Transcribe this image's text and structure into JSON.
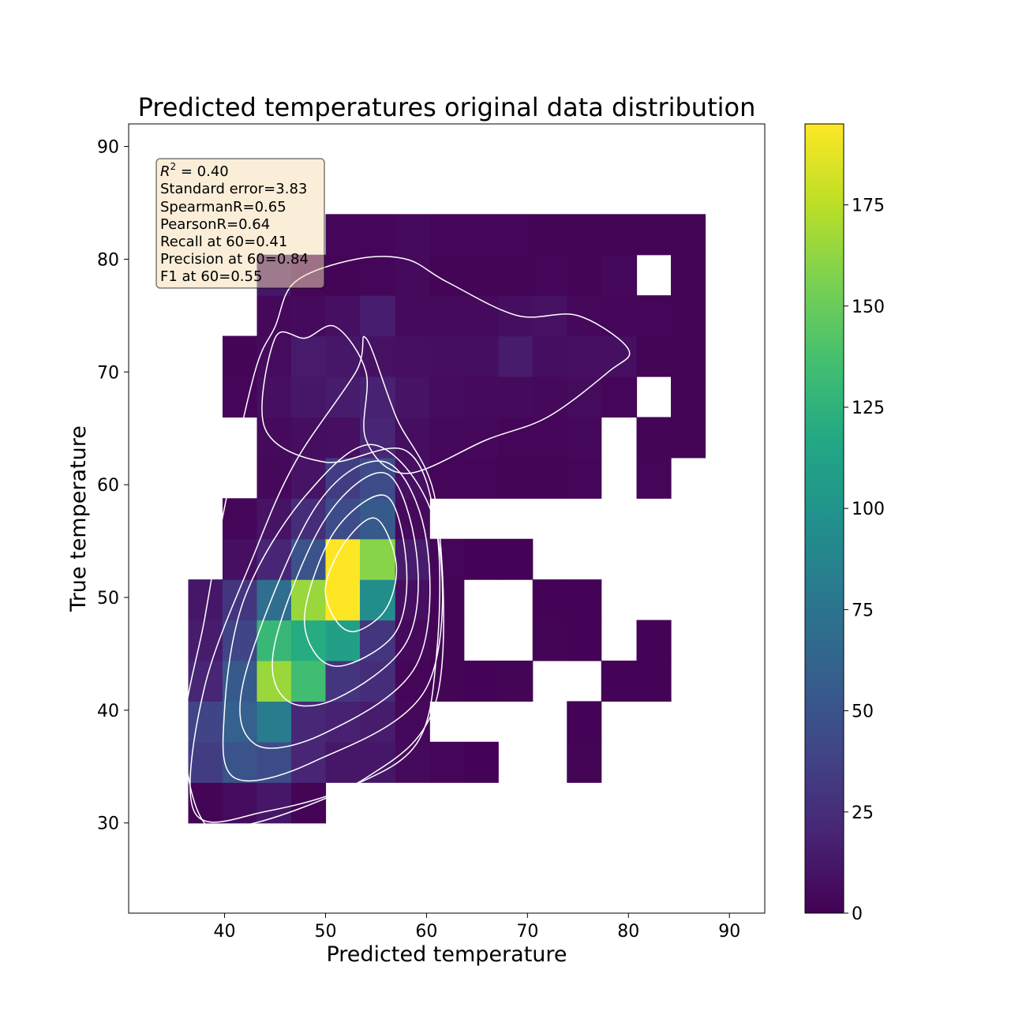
{
  "chart_data": {
    "type": "heatmap",
    "title": "Predicted temperatures original data distribution",
    "xlabel": "Predicted temperature",
    "ylabel": "True temperature",
    "xlim": [
      30.5,
      93.5
    ],
    "ylim": [
      22,
      92
    ],
    "xticks": [
      40,
      50,
      60,
      70,
      80,
      90
    ],
    "yticks": [
      30,
      40,
      50,
      60,
      70,
      80,
      90
    ],
    "bins": {
      "x_edges": [
        36.4,
        39.8,
        43.2,
        46.6,
        50.0,
        53.4,
        56.9,
        60.3,
        63.7,
        67.1,
        70.5,
        73.9,
        77.3,
        80.8,
        84.2,
        87.6
      ],
      "y_edges": [
        30.0,
        33.6,
        37.2,
        40.8,
        44.4,
        48.0,
        51.6,
        55.2,
        58.8,
        62.4,
        66.0,
        69.6,
        73.2,
        76.8,
        80.4,
        84.0
      ],
      "counts": [
        [
          2,
          6,
          12,
          2,
          null,
          null,
          null,
          null,
          null,
          null,
          null,
          null,
          null,
          null,
          null
        ],
        [
          35,
          50,
          45,
          20,
          12,
          12,
          5,
          3,
          1,
          null,
          null,
          2,
          null,
          null,
          null
        ],
        [
          40,
          60,
          80,
          22,
          18,
          15,
          4,
          null,
          null,
          null,
          null,
          1,
          null,
          null,
          null
        ],
        [
          20,
          55,
          165,
          135,
          30,
          25,
          3,
          2,
          1,
          2,
          null,
          null,
          1,
          1,
          null
        ],
        [
          15,
          40,
          130,
          120,
          110,
          30,
          5,
          2,
          null,
          null,
          2,
          1,
          null,
          1,
          null
        ],
        [
          12,
          30,
          70,
          165,
          195,
          95,
          8,
          2,
          null,
          null,
          1,
          1,
          null,
          null,
          null
        ],
        [
          null,
          8,
          20,
          50,
          195,
          160,
          15,
          3,
          1,
          1,
          null,
          null,
          null,
          null,
          null
        ],
        [
          null,
          3,
          10,
          25,
          45,
          55,
          5,
          null,
          null,
          null,
          null,
          null,
          null,
          null,
          null
        ],
        [
          null,
          null,
          4,
          10,
          35,
          45,
          8,
          3,
          3,
          2,
          2,
          3,
          null,
          3,
          null
        ],
        [
          null,
          null,
          5,
          7,
          8,
          20,
          7,
          4,
          4,
          3,
          3,
          4,
          null,
          2,
          2
        ],
        [
          null,
          3,
          8,
          12,
          15,
          18,
          10,
          6,
          5,
          5,
          4,
          6,
          3,
          null,
          2
        ],
        [
          null,
          2,
          6,
          14,
          12,
          9,
          8,
          7,
          7,
          15,
          7,
          8,
          8,
          2,
          2
        ],
        [
          null,
          null,
          4,
          5,
          8,
          16,
          5,
          5,
          5,
          7,
          9,
          4,
          3,
          3,
          2
        ],
        [
          null,
          null,
          12,
          3,
          2,
          3,
          5,
          2,
          2,
          2,
          3,
          2,
          4,
          null,
          2
        ],
        [
          null,
          null,
          null,
          null,
          3,
          3,
          5,
          3,
          3,
          3,
          2,
          2,
          2,
          2,
          2
        ]
      ]
    },
    "colorbar": {
      "colormap": "viridis",
      "min": 0,
      "max": 195,
      "ticks": [
        0,
        25,
        50,
        75,
        100,
        125,
        150,
        175
      ]
    },
    "stats_box": {
      "lines": [
        "Standard error=3.83",
        "SpearmanR=0.65",
        "PearsonR=0.64",
        "Recall at 60=0.41",
        "Precision at 60=0.84",
        "F1 at 60=0.55"
      ],
      "r2_symbol": "R",
      "r2_sup": "2",
      "r2_rest": " = 0.40",
      "background": "#f5deb3"
    },
    "kde": {
      "line_color": "#ffffff",
      "contours": [
        [
          [
            52,
            55
          ],
          [
            55,
            57
          ],
          [
            57,
            53
          ],
          [
            56,
            49
          ],
          [
            53,
            47
          ],
          [
            51,
            48
          ],
          [
            50,
            51
          ]
        ],
        [
          [
            51,
            56
          ],
          [
            56,
            59
          ],
          [
            58,
            53
          ],
          [
            57,
            47
          ],
          [
            52,
            44
          ],
          [
            49,
            45
          ],
          [
            48,
            49
          ]
        ],
        [
          [
            50,
            57
          ],
          [
            56,
            61
          ],
          [
            59,
            54
          ],
          [
            58,
            46
          ],
          [
            51,
            41
          ],
          [
            46,
            41
          ],
          [
            45,
            46
          ]
        ],
        [
          [
            49,
            58
          ],
          [
            56,
            62
          ],
          [
            60,
            55
          ],
          [
            59,
            44
          ],
          [
            50,
            38
          ],
          [
            43,
            37
          ],
          [
            42,
            43
          ]
        ],
        [
          [
            48,
            59
          ],
          [
            55,
            63.5
          ],
          [
            61,
            56
          ],
          [
            60,
            42
          ],
          [
            49,
            35.5
          ],
          [
            41,
            34
          ],
          [
            40,
            40
          ],
          [
            42,
            50
          ]
        ],
        [
          [
            47,
            62
          ],
          [
            53,
            70
          ],
          [
            54,
            73
          ],
          [
            57,
            66
          ],
          [
            61,
            58
          ],
          [
            61,
            41
          ],
          [
            54,
            34
          ],
          [
            44,
            31
          ],
          [
            37,
            31
          ],
          [
            38,
            42
          ],
          [
            43,
            54
          ]
        ],
        [
          [
            44,
            65
          ],
          [
            45,
            73
          ],
          [
            48,
            73
          ],
          [
            51,
            74
          ],
          [
            54,
            70
          ],
          [
            54,
            64
          ],
          [
            58,
            61
          ],
          [
            66,
            64
          ],
          [
            72,
            66
          ],
          [
            78,
            70
          ],
          [
            80,
            72
          ],
          [
            75,
            75
          ],
          [
            69,
            75
          ],
          [
            62,
            78
          ],
          [
            58,
            80
          ],
          [
            53,
            80
          ],
          [
            47,
            78
          ],
          [
            45,
            74
          ],
          [
            43,
            70
          ],
          [
            40,
            58
          ],
          [
            38,
            48
          ],
          [
            36,
            38
          ],
          [
            38,
            30
          ],
          [
            43,
            30
          ],
          [
            52,
            33
          ],
          [
            59,
            37
          ],
          [
            61,
            45
          ],
          [
            61,
            56
          ],
          [
            58,
            63
          ],
          [
            50,
            62
          ]
        ]
      ]
    }
  }
}
